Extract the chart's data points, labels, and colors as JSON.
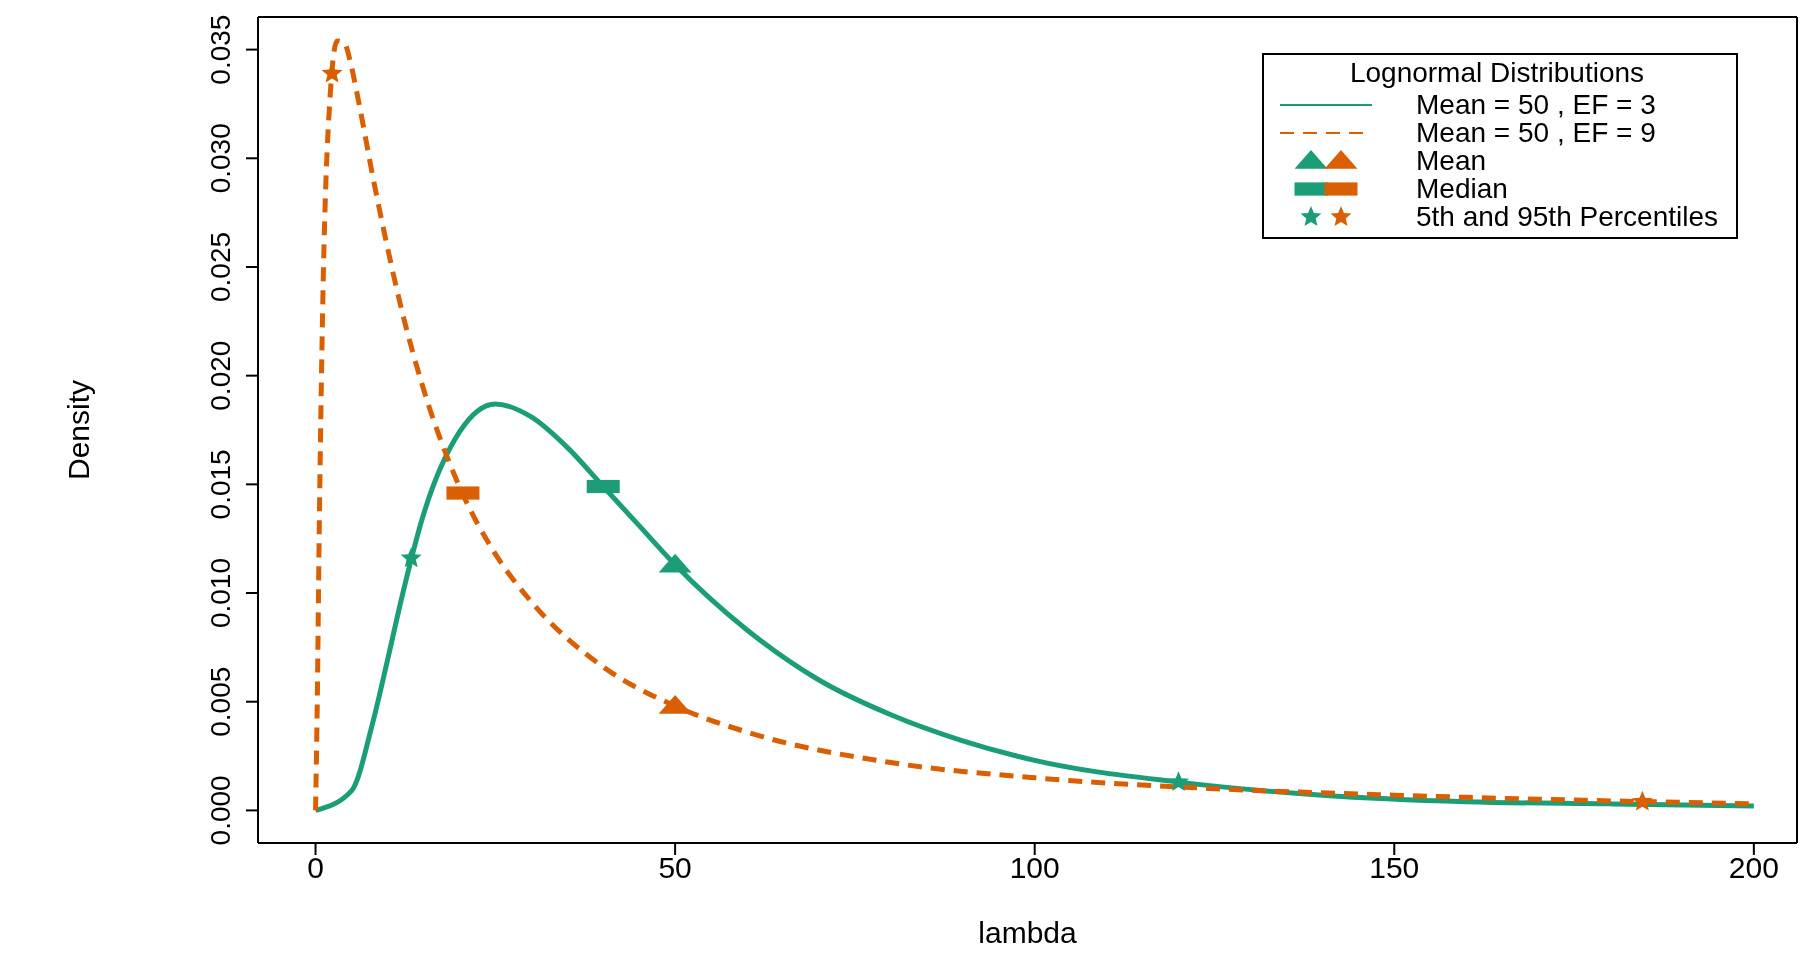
{
  "chart_data": {
    "type": "line",
    "xlabel": "lambda",
    "ylabel": "Density",
    "legend_title": "Lognormal Distributions",
    "legend": "top right",
    "xlim": [
      -8,
      206
    ],
    "xticks": [
      0,
      50,
      100,
      150,
      200
    ],
    "ylim": [
      -0.0015,
      0.0365
    ],
    "yticks": [
      {
        "value": 0,
        "label": "0.000"
      },
      {
        "value": 0.005,
        "label": "0.005"
      },
      {
        "value": 0.01,
        "label": "0.010"
      },
      {
        "value": 0.015,
        "label": "0.015"
      },
      {
        "value": 0.02,
        "label": "0.020"
      },
      {
        "value": 0.025,
        "label": "0.025"
      },
      {
        "value": 0.03,
        "label": "0.030"
      },
      {
        "value": 0.035,
        "label": "0.035"
      }
    ],
    "grid": false,
    "series": [
      {
        "name": "Mean = 50 , EF = 3",
        "type": "line",
        "color": "#1b9e77",
        "line_style": "solid",
        "x": [
          0,
          5,
          8,
          10,
          12,
          15,
          20,
          25,
          30,
          35,
          40,
          45,
          50,
          60,
          70,
          80,
          90,
          100,
          120,
          140,
          160,
          180,
          200
        ],
        "values": [
          0,
          0.0009,
          0.0041,
          0.0069,
          0.0098,
          0.0136,
          0.0174,
          0.0187,
          0.0181,
          0.0167,
          0.0149,
          0.0131,
          0.0113,
          0.0083,
          0.006,
          0.0044,
          0.0032,
          0.0023,
          0.0013,
          0.0007,
          0.0004,
          0.0003,
          0.0002
        ]
      },
      {
        "name": "Mean = 50 , EF = 9",
        "type": "line",
        "color": "#d95f02",
        "line_style": "dashed",
        "x": [
          0,
          0.25,
          0.5,
          1,
          2,
          3,
          4,
          5,
          6,
          8,
          10,
          12,
          15,
          20,
          25,
          30,
          40,
          50,
          60,
          80,
          100,
          125,
          150,
          200
        ],
        "values": [
          0,
          0.0052,
          0.0125,
          0.0232,
          0.0327,
          0.0354,
          0.0353,
          0.0342,
          0.0326,
          0.0291,
          0.0259,
          0.023,
          0.0194,
          0.0149,
          0.0118,
          0.0096,
          0.0066,
          0.0048,
          0.0036,
          0.0022,
          0.0015,
          0.001,
          0.0007,
          0.0003
        ]
      },
      {
        "name": "Mean",
        "type": "scatter",
        "marker": "triangle",
        "color": "#000000",
        "colors": [
          "#1b9e77",
          "#d95f02"
        ],
        "x": [
          50,
          50
        ],
        "values": [
          0.0113,
          0.0048
        ]
      },
      {
        "name": "Median",
        "type": "scatter",
        "marker": "square",
        "color": "#000000",
        "colors": [
          "#1b9e77",
          "#d95f02"
        ],
        "x": [
          40,
          20.5
        ],
        "values": [
          0.0149,
          0.0146
        ]
      },
      {
        "name": "5th and 95th Percentiles",
        "type": "scatter",
        "marker": "star",
        "color": "#000000",
        "colors": [
          "#1b9e77",
          "#1b9e77",
          "#d95f02",
          "#d95f02"
        ],
        "x": [
          13.3,
          120,
          2.3,
          184.5
        ],
        "values": [
          0.0116,
          0.0013,
          0.0339,
          0.0004
        ]
      }
    ]
  }
}
